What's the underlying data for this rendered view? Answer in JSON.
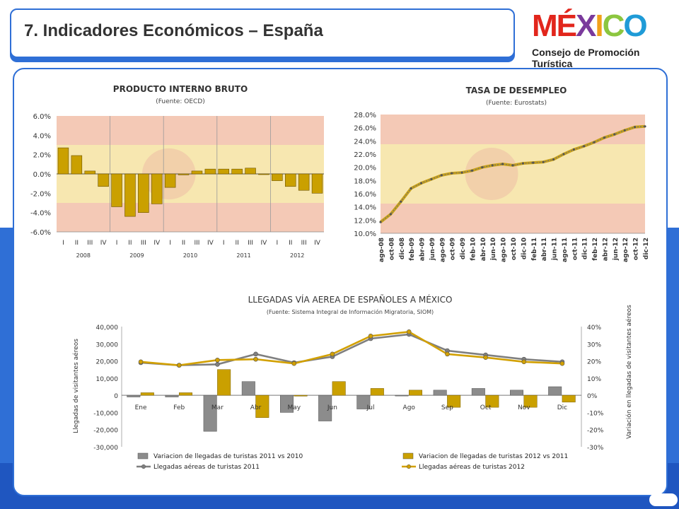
{
  "header": {
    "title": "7. Indicadores Económicos – España"
  },
  "logo": {
    "letters": [
      "M",
      "É",
      "X",
      "I",
      "C",
      "O"
    ],
    "colors": [
      "#e2261c",
      "#e2261c",
      "#7a3a9c",
      "#f1a11a",
      "#8cc63f",
      "#1f9bd7"
    ],
    "subtitle": "Consejo de Promoción Turística"
  },
  "colors": {
    "accent": "#2f6fd6",
    "bar": "#caa000",
    "bar_2011": "#8c8c8c",
    "line_2012": "#d2a000",
    "line_2011": "#7f7f7f"
  },
  "chart_data": [
    {
      "type": "bar",
      "title": "PRODUCTO INTERNO BRUTO",
      "subtitle": "(Fuente: OECD)",
      "quarters": [
        "I",
        "II",
        "III",
        "IV"
      ],
      "years": [
        "2008",
        "2009",
        "2010",
        "2011",
        "2012"
      ],
      "values": [
        2.7,
        1.9,
        0.3,
        -1.3,
        -3.4,
        -4.4,
        -4.0,
        -3.1,
        -1.4,
        -0.1,
        0.3,
        0.5,
        0.5,
        0.5,
        0.6,
        0.0,
        -0.7,
        -1.3,
        -1.7,
        -2.0
      ],
      "yticks": [
        "6.0%",
        "4.0%",
        "2.0%",
        "0.0%",
        "-2.0%",
        "-4.0%",
        "-6.0%"
      ],
      "ylim": [
        -6,
        6
      ]
    },
    {
      "type": "line",
      "title": "TASA DE DESEMPLEO",
      "subtitle": "(Fuente: Eurostats)",
      "x": [
        "ago-08",
        "oct-08",
        "dic-08",
        "feb-09",
        "abr-09",
        "jun-09",
        "ago-09",
        "oct-09",
        "dic-09",
        "feb-10",
        "abr-10",
        "jun-10",
        "ago-10",
        "oct-10",
        "dic-10",
        "feb-11",
        "abr-11",
        "jun-11",
        "ago-11",
        "oct-11",
        "dic-11",
        "feb-12",
        "abr-12",
        "jun-12",
        "ago-12",
        "oct-12",
        "dic-12"
      ],
      "values": [
        11.7,
        12.9,
        14.8,
        16.8,
        17.6,
        18.2,
        18.8,
        19.1,
        19.2,
        19.5,
        20.0,
        20.3,
        20.5,
        20.3,
        20.6,
        20.7,
        20.8,
        21.2,
        22.0,
        22.7,
        23.2,
        23.8,
        24.5,
        25.0,
        25.6,
        26.1,
        26.2
      ],
      "yticks": [
        "28.0%",
        "26.0%",
        "24.0%",
        "22.0%",
        "20.0%",
        "18.0%",
        "16.0%",
        "14.0%",
        "12.0%",
        "10.0%"
      ],
      "ylim": [
        10,
        28
      ]
    },
    {
      "type": "bar",
      "title": "LLEGADAS VÍA AEREA DE ESPAÑOLES A MÉXICO",
      "subtitle": "(Fuente: Sistema Integral de Información Migratoria, SIOM)",
      "categories": [
        "Ene",
        "Feb",
        "Mar",
        "Abr",
        "May",
        "Jun",
        "Jul",
        "Ago",
        "Sep",
        "Oct",
        "Nov",
        "Dic"
      ],
      "ylabel": "Llegadas de visitantes aéreos",
      "y2label": "Variación en llegadas de visitantes aéreos",
      "yticks": [
        "40,000",
        "30,000",
        "20,000",
        "10,000",
        "0",
        "-10,000",
        "-20,000",
        "-30,000"
      ],
      "y2ticks": [
        "40%",
        "30%",
        "20%",
        "10%",
        "0%",
        "-10%",
        "-20%",
        "-30%"
      ],
      "ylim": [
        -30000,
        40000
      ],
      "y2lim": [
        -0.3,
        0.4
      ],
      "series": [
        {
          "name": "Variacion de llegadas de turistas 2011 vs 2010",
          "kind": "bar",
          "values": [
            -0.01,
            -0.01,
            -0.21,
            0.08,
            -0.1,
            -0.15,
            -0.08,
            0.0,
            0.03,
            0.04,
            0.03,
            0.05
          ]
        },
        {
          "name": "Variacion de llegadas de turistas 2012 vs 2011",
          "kind": "bar",
          "values": [
            0.015,
            0.015,
            0.15,
            -0.13,
            -0.005,
            0.08,
            0.04,
            0.03,
            -0.07,
            -0.07,
            -0.07,
            -0.04
          ]
        },
        {
          "name": "Llegadas aéreas de turistas 2011",
          "kind": "line",
          "values": [
            19000,
            17500,
            18000,
            24000,
            19000,
            22500,
            33000,
            35500,
            26000,
            23500,
            21000,
            19500
          ]
        },
        {
          "name": "Llegadas aéreas de turistas 2012",
          "kind": "line",
          "values": [
            19500,
            17500,
            20500,
            21000,
            18500,
            24000,
            34500,
            37000,
            24000,
            22000,
            19500,
            18500
          ]
        }
      ]
    }
  ]
}
